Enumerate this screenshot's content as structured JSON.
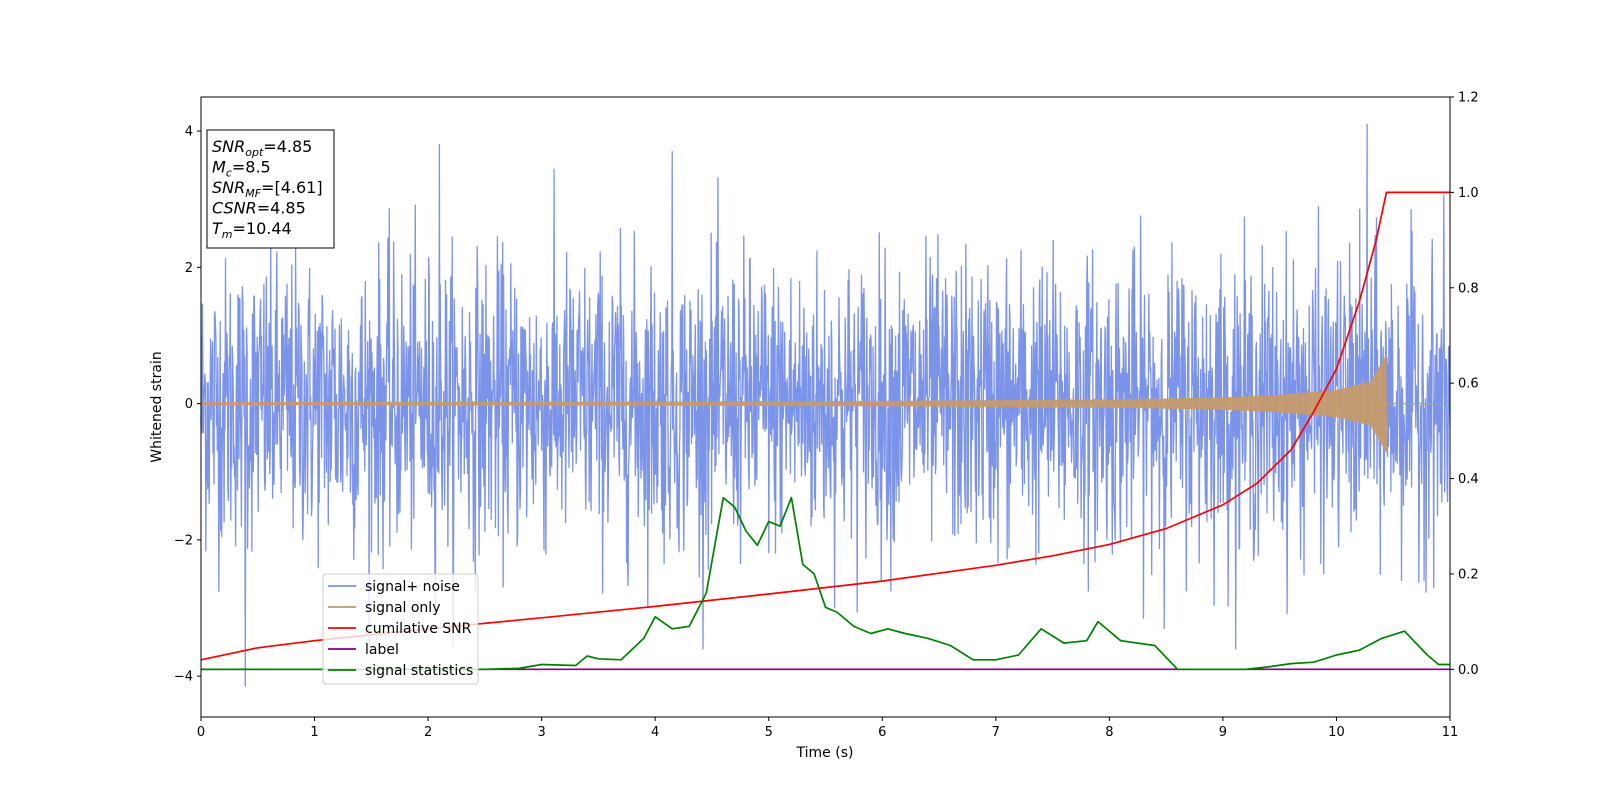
{
  "chart_data": {
    "type": "line",
    "xlabel": "Time (s)",
    "ylabel": "Whitened strain",
    "xlim": [
      0,
      11
    ],
    "ylim_left": [
      -4.6,
      4.5
    ],
    "ylim_right": [
      -0.1,
      1.2
    ],
    "xticks": [
      0,
      1,
      2,
      3,
      4,
      5,
      6,
      7,
      8,
      9,
      10,
      11
    ],
    "yticks_left": [
      -4,
      -2,
      0,
      2,
      4
    ],
    "yticks_right": [
      0.0,
      0.2,
      0.4,
      0.6,
      0.8,
      1.0,
      1.2
    ],
    "grid": false,
    "legend_position": "lower-left",
    "annotation_box": {
      "position": "top-left",
      "lines": [
        {
          "base": "SNR",
          "sub": "opt",
          "value": "=4.85"
        },
        {
          "base": "M",
          "sub": "c",
          "value": "=8.5"
        },
        {
          "base": "SNR",
          "sub": "MF",
          "value": "=[4.61]"
        },
        {
          "base": "CSNR",
          "sub": "",
          "value": "=4.85"
        },
        {
          "base": "T",
          "sub": "m",
          "value": "=10.44"
        }
      ]
    },
    "series": [
      {
        "name": "signal+ noise",
        "color": "#7b93e8",
        "axis": "left",
        "description": "noise-dominated whitened strain, roughly gaussian about 0 with excursions to about +4.1 and -4.2",
        "notable_peaks": [
          [
            0.39,
            -4.15
          ],
          [
            2.1,
            3.8
          ],
          [
            4.15,
            3.7
          ],
          [
            10.27,
            4.1
          ]
        ]
      },
      {
        "name": "signal only",
        "color": "#c49a6c",
        "axis": "left",
        "description": "chirp waveform growing in amplitude until merger",
        "envelope": [
          [
            0,
            0.02
          ],
          [
            4,
            0.03
          ],
          [
            6,
            0.04
          ],
          [
            8,
            0.06
          ],
          [
            9,
            0.09
          ],
          [
            9.5,
            0.13
          ],
          [
            10,
            0.2
          ],
          [
            10.3,
            0.32
          ],
          [
            10.44,
            0.72
          ]
        ],
        "merger_time": 10.44
      },
      {
        "name": "cumilative SNR",
        "color": "#ff0000",
        "axis": "right",
        "points": [
          [
            0,
            0.02
          ],
          [
            0.5,
            0.045
          ],
          [
            1,
            0.06
          ],
          [
            2,
            0.085
          ],
          [
            3,
            0.108
          ],
          [
            4,
            0.132
          ],
          [
            5,
            0.158
          ],
          [
            6,
            0.185
          ],
          [
            7,
            0.218
          ],
          [
            7.5,
            0.238
          ],
          [
            8,
            0.262
          ],
          [
            8.5,
            0.295
          ],
          [
            9,
            0.345
          ],
          [
            9.3,
            0.39
          ],
          [
            9.6,
            0.46
          ],
          [
            9.8,
            0.54
          ],
          [
            10,
            0.63
          ],
          [
            10.2,
            0.77
          ],
          [
            10.35,
            0.9
          ],
          [
            10.44,
            1.0
          ],
          [
            11,
            1.0
          ]
        ]
      },
      {
        "name": "label",
        "color": "#800080",
        "axis": "right",
        "points": [
          [
            0,
            0.0
          ],
          [
            11,
            0.0
          ]
        ]
      },
      {
        "name": "signal statistics",
        "color": "#008000",
        "axis": "right",
        "points": [
          [
            0,
            0.0
          ],
          [
            0.5,
            0.0
          ],
          [
            1.5,
            0.0
          ],
          [
            2.5,
            0.0
          ],
          [
            2.8,
            0.002
          ],
          [
            3.0,
            0.01
          ],
          [
            3.3,
            0.008
          ],
          [
            3.4,
            0.028
          ],
          [
            3.5,
            0.022
          ],
          [
            3.7,
            0.02
          ],
          [
            3.9,
            0.065
          ],
          [
            4.0,
            0.11
          ],
          [
            4.15,
            0.085
          ],
          [
            4.3,
            0.09
          ],
          [
            4.45,
            0.16
          ],
          [
            4.6,
            0.36
          ],
          [
            4.7,
            0.34
          ],
          [
            4.8,
            0.29
          ],
          [
            4.9,
            0.26
          ],
          [
            5.0,
            0.31
          ],
          [
            5.1,
            0.3
          ],
          [
            5.2,
            0.36
          ],
          [
            5.3,
            0.22
          ],
          [
            5.4,
            0.2
          ],
          [
            5.5,
            0.13
          ],
          [
            5.6,
            0.12
          ],
          [
            5.75,
            0.09
          ],
          [
            5.9,
            0.075
          ],
          [
            6.05,
            0.085
          ],
          [
            6.2,
            0.075
          ],
          [
            6.4,
            0.065
          ],
          [
            6.6,
            0.05
          ],
          [
            6.8,
            0.02
          ],
          [
            7.0,
            0.02
          ],
          [
            7.2,
            0.03
          ],
          [
            7.4,
            0.085
          ],
          [
            7.6,
            0.055
          ],
          [
            7.8,
            0.06
          ],
          [
            7.9,
            0.1
          ],
          [
            8.1,
            0.06
          ],
          [
            8.4,
            0.05
          ],
          [
            8.6,
            0.0
          ],
          [
            9.2,
            0.0
          ],
          [
            9.4,
            0.005
          ],
          [
            9.6,
            0.012
          ],
          [
            9.8,
            0.015
          ],
          [
            10.0,
            0.03
          ],
          [
            10.2,
            0.04
          ],
          [
            10.4,
            0.065
          ],
          [
            10.6,
            0.08
          ],
          [
            10.8,
            0.03
          ],
          [
            10.9,
            0.01
          ],
          [
            11,
            0.01
          ]
        ]
      }
    ],
    "legend": [
      "signal+ noise",
      "signal only",
      "cumilative SNR",
      "label",
      "signal statistics"
    ]
  }
}
